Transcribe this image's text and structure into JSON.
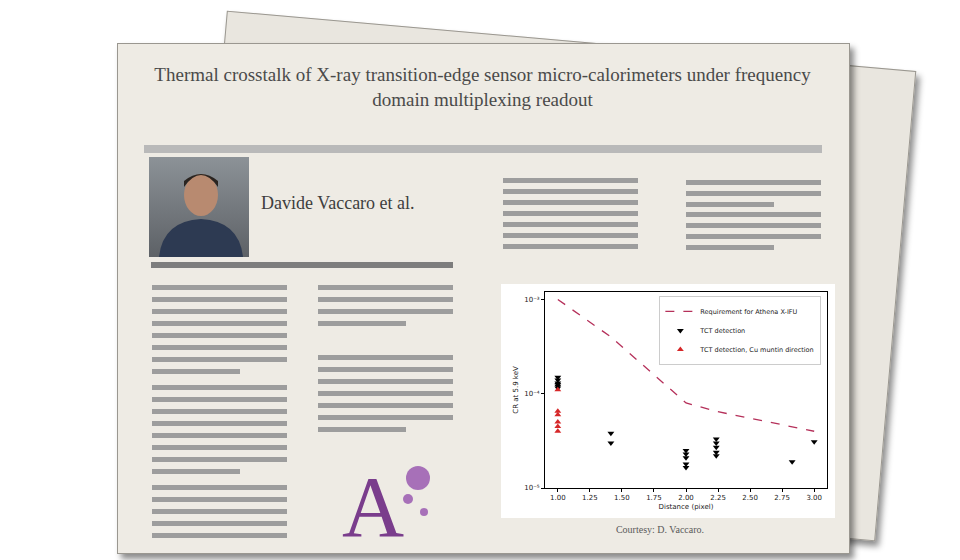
{
  "poster": {
    "title": "Thermal crosstalk of X-ray transition-edge sensor micro-calorimeters under frequency domain multiplexing readout",
    "author": "Davide Vaccaro et al.",
    "courtesy": "Courtesy: D. Vaccaro."
  },
  "chart_data": {
    "type": "scatter",
    "x_label": "Distance (pixel)",
    "y_label": "CR at 5.9 keV",
    "log": "y",
    "grid": false,
    "legend": "upper right",
    "xlim": [
      0.9,
      3.1
    ],
    "xticks": [
      {
        "value": 1.0,
        "label": "1.00"
      },
      {
        "value": 1.25,
        "label": "1.25"
      },
      {
        "value": 1.5,
        "label": "1.50"
      },
      {
        "value": 1.75,
        "label": "1.75"
      },
      {
        "value": 2.0,
        "label": "2.00"
      },
      {
        "value": 2.25,
        "label": "2.25"
      },
      {
        "value": 2.5,
        "label": "2.50"
      },
      {
        "value": 2.75,
        "label": "2.75"
      },
      {
        "value": 3.0,
        "label": "3.00"
      }
    ],
    "ylim": [
      1e-05,
      0.0012
    ],
    "yticks": [
      {
        "value": 1e-05,
        "label": "10⁻⁵"
      },
      {
        "value": 0.0001,
        "label": "10⁻⁴"
      },
      {
        "value": 0.001,
        "label": "10⁻³"
      }
    ],
    "series": [
      {
        "name": "Requirement for Athena X-IFU",
        "type": "line",
        "color": "#b5305a",
        "line_style": "dashed",
        "x": [
          1.0,
          1.414,
          2.0,
          2.236,
          3.0
        ],
        "values": [
          0.001,
          0.0004,
          8e-05,
          6.5e-05,
          4e-05
        ]
      },
      {
        "name": "TCT detection",
        "type": "scatter",
        "color": "#000000",
        "marker": "triangle-down",
        "x": [
          1.0,
          1.0,
          1.0,
          1.0,
          1.0,
          1.0,
          1.414,
          1.414,
          2.0,
          2.0,
          2.0,
          2.0,
          2.0,
          2.236,
          2.236,
          2.236,
          2.236,
          2.236,
          2.828,
          3.0
        ],
        "values": [
          0.00015,
          0.00014,
          0.00013,
          0.000125,
          0.00012,
          0.000115,
          3.8e-05,
          3e-05,
          2.5e-05,
          2.3e-05,
          2.1e-05,
          1.8e-05,
          1.65e-05,
          3.3e-05,
          3e-05,
          2.7e-05,
          2.4e-05,
          2.2e-05,
          1.9e-05,
          3.1e-05
        ]
      },
      {
        "name": "TCT detection, Cu muntin direction",
        "type": "scatter",
        "color": "#d62728",
        "marker": "triangle-up",
        "x": [
          1.0,
          1.0,
          1.0,
          1.0,
          1.0,
          1.0
        ],
        "values": [
          0.00011,
          6.5e-05,
          6e-05,
          5e-05,
          4.5e-05,
          4e-05
        ]
      }
    ]
  }
}
